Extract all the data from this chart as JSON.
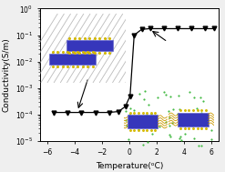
{
  "title": "",
  "xlabel": "Temperature(ᵒC)",
  "ylabel": "Conductivity(S/m)",
  "xlim": [
    -6.5,
    6.5
  ],
  "ylim_lo": 1e-05,
  "ylim_hi": 1.0,
  "xticks": [
    -6,
    -4,
    -2,
    0,
    2,
    4,
    6
  ],
  "x_data": [
    -5.5,
    -4.5,
    -3.5,
    -2.5,
    -1.5,
    -0.8,
    -0.3,
    0.05,
    0.35,
    0.9,
    1.5,
    2.5,
    3.5,
    4.5,
    5.5,
    6.2
  ],
  "y_data": [
    0.00012,
    0.00012,
    0.00012,
    0.00012,
    0.00012,
    0.00013,
    0.0002,
    0.0005,
    0.1,
    0.165,
    0.175,
    0.175,
    0.175,
    0.175,
    0.175,
    0.175
  ],
  "marker": "v",
  "marker_size": 3.5,
  "line_color": "black",
  "background_color": "#efefef",
  "plot_bg": "white"
}
